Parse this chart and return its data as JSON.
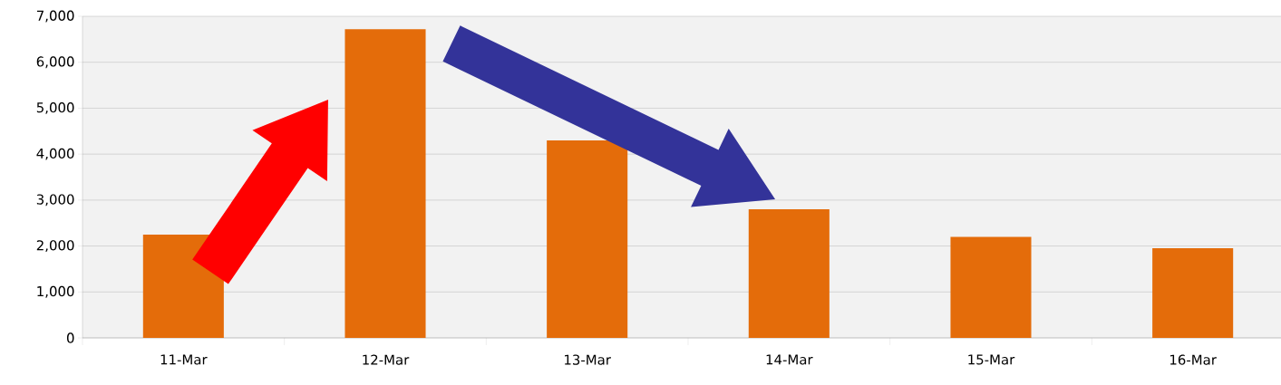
{
  "chart_data": {
    "type": "bar",
    "categories": [
      "11-Mar",
      "12-Mar",
      "13-Mar",
      "14-Mar",
      "15-Mar",
      "16-Mar"
    ],
    "values": [
      2250,
      6720,
      4300,
      2800,
      2200,
      1950
    ],
    "color": "#e46c0a",
    "ylim": [
      0,
      7000
    ],
    "yticks": [
      0,
      {
        "value": 1000,
        "label": "1,000"
      },
      {
        "value": 2000,
        "label": "2,000"
      },
      {
        "value": 3000,
        "label": "3,000"
      },
      {
        "value": 4000,
        "label": "4,000"
      },
      {
        "value": 5000,
        "label": "5,000"
      },
      {
        "value": 6000,
        "label": "6,000"
      },
      {
        "value": 7000,
        "label": "7,000"
      }
    ],
    "grid": "y"
  }
}
